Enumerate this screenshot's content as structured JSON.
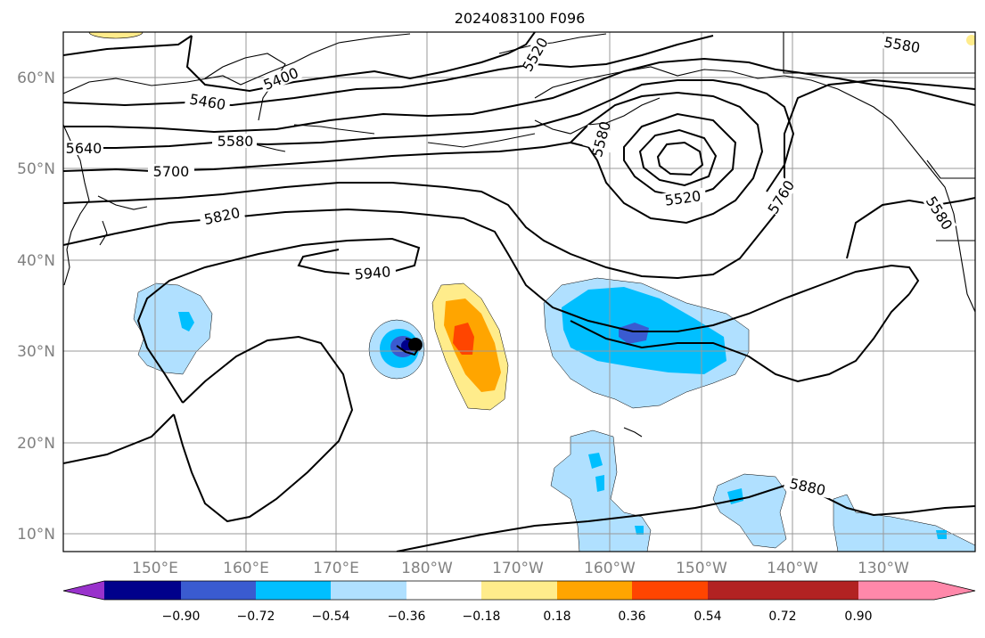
{
  "title": "2024083100 F096",
  "lat_labels": [
    "60°N",
    "50°N",
    "40°N",
    "30°N",
    "20°N",
    "10°N"
  ],
  "lon_labels": [
    "150°E",
    "160°E",
    "170°E",
    "180°W",
    "170°W",
    "160°W",
    "150°W",
    "140°W",
    "130°W"
  ],
  "contour_labels": [
    "5400",
    "5460",
    "5520",
    "5580",
    "5640",
    "5700",
    "5820",
    "5940",
    "5580",
    "5520",
    "5760",
    "5580",
    "5880",
    "5580"
  ],
  "colorbar": {
    "colors": [
      "#9932cc",
      "#00008b",
      "#3a5bd0",
      "#00bfff",
      "#b0e0ff",
      "#ffffff",
      "#ffec8b",
      "#ffa500",
      "#ff4500",
      "#b22222",
      "#ff88aa"
    ],
    "tick_labels": [
      "−0.90",
      "−0.72",
      "−0.54",
      "−0.36",
      "−0.18",
      "0.18",
      "0.36",
      "0.54",
      "0.72",
      "0.90"
    ]
  },
  "colors": {
    "contour": "#000000",
    "grid": "#999999",
    "axis_label": "#808080",
    "coast": "#000000"
  }
}
